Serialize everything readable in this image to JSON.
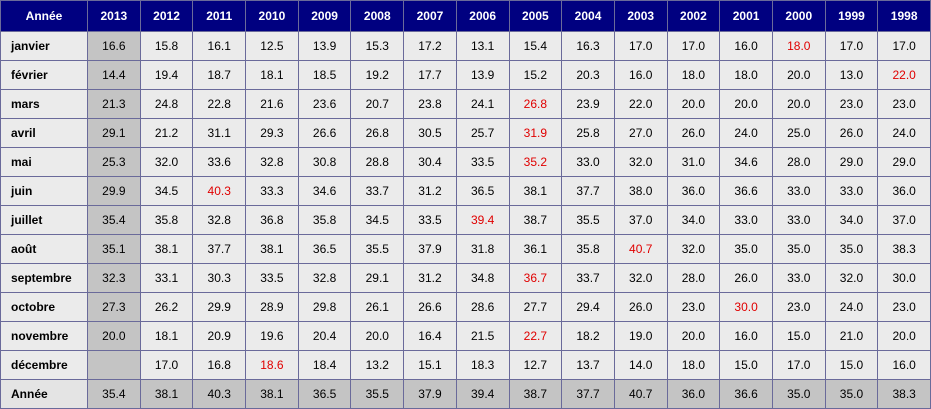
{
  "table": {
    "header": [
      "Année",
      "2013",
      "2012",
      "2011",
      "2010",
      "2009",
      "2008",
      "2007",
      "2006",
      "2005",
      "2004",
      "2003",
      "2002",
      "2001",
      "2000",
      "1999",
      "1998"
    ],
    "highlight_color": "#e00000",
    "rows": [
      {
        "label": "janvier",
        "values": [
          "16.6",
          "15.8",
          "16.1",
          "12.5",
          "13.9",
          "15.3",
          "17.2",
          "13.1",
          "15.4",
          "16.3",
          "17.0",
          "17.0",
          "16.0",
          "18.0",
          "17.0",
          "17.0"
        ],
        "highlight": 13
      },
      {
        "label": "février",
        "values": [
          "14.4",
          "19.4",
          "18.7",
          "18.1",
          "18.5",
          "19.2",
          "17.7",
          "13.9",
          "15.2",
          "20.3",
          "16.0",
          "18.0",
          "18.0",
          "20.0",
          "13.0",
          "22.0"
        ],
        "highlight": 15
      },
      {
        "label": "mars",
        "values": [
          "21.3",
          "24.8",
          "22.8",
          "21.6",
          "23.6",
          "20.7",
          "23.8",
          "24.1",
          "26.8",
          "23.9",
          "22.0",
          "20.0",
          "20.0",
          "20.0",
          "23.0",
          "23.0"
        ],
        "highlight": 8
      },
      {
        "label": "avril",
        "values": [
          "29.1",
          "21.2",
          "31.1",
          "29.3",
          "26.6",
          "26.8",
          "30.5",
          "25.7",
          "31.9",
          "25.8",
          "27.0",
          "26.0",
          "24.0",
          "25.0",
          "26.0",
          "24.0"
        ],
        "highlight": 8
      },
      {
        "label": "mai",
        "values": [
          "25.3",
          "32.0",
          "33.6",
          "32.8",
          "30.8",
          "28.8",
          "30.4",
          "33.5",
          "35.2",
          "33.0",
          "32.0",
          "31.0",
          "34.6",
          "28.0",
          "29.0",
          "29.0"
        ],
        "highlight": 8
      },
      {
        "label": "juin",
        "values": [
          "29.9",
          "34.5",
          "40.3",
          "33.3",
          "34.6",
          "33.7",
          "31.2",
          "36.5",
          "38.1",
          "37.7",
          "38.0",
          "36.0",
          "36.6",
          "33.0",
          "33.0",
          "36.0"
        ],
        "highlight": 2
      },
      {
        "label": "juillet",
        "values": [
          "35.4",
          "35.8",
          "32.8",
          "36.8",
          "35.8",
          "34.5",
          "33.5",
          "39.4",
          "38.7",
          "35.5",
          "37.0",
          "34.0",
          "33.0",
          "33.0",
          "34.0",
          "37.0"
        ],
        "highlight": 7
      },
      {
        "label": "août",
        "values": [
          "35.1",
          "38.1",
          "37.7",
          "38.1",
          "36.5",
          "35.5",
          "37.9",
          "31.8",
          "36.1",
          "35.8",
          "40.7",
          "32.0",
          "35.0",
          "35.0",
          "35.0",
          "38.3"
        ],
        "highlight": 10
      },
      {
        "label": "septembre",
        "values": [
          "32.3",
          "33.1",
          "30.3",
          "33.5",
          "32.8",
          "29.1",
          "31.2",
          "34.8",
          "36.7",
          "33.7",
          "32.0",
          "28.0",
          "26.0",
          "33.0",
          "32.0",
          "30.0"
        ],
        "highlight": 8
      },
      {
        "label": "octobre",
        "values": [
          "27.3",
          "26.2",
          "29.9",
          "28.9",
          "29.8",
          "26.1",
          "26.6",
          "28.6",
          "27.7",
          "29.4",
          "26.0",
          "23.0",
          "30.0",
          "23.0",
          "24.0",
          "23.0"
        ],
        "highlight": 12
      },
      {
        "label": "novembre",
        "values": [
          "20.0",
          "18.1",
          "20.9",
          "19.6",
          "20.4",
          "20.0",
          "16.4",
          "21.5",
          "22.7",
          "18.2",
          "19.0",
          "20.0",
          "16.0",
          "15.0",
          "21.0",
          "20.0"
        ],
        "highlight": 8
      },
      {
        "label": "décembre",
        "values": [
          null,
          "17.0",
          "16.8",
          "18.6",
          "18.4",
          "13.2",
          "15.1",
          "18.3",
          "12.7",
          "13.7",
          "14.0",
          "18.0",
          "15.0",
          "17.0",
          "15.0",
          "16.0"
        ],
        "highlight": 3
      }
    ],
    "footer": {
      "label": "Année",
      "values": [
        "35.4",
        "38.1",
        "40.3",
        "38.1",
        "36.5",
        "35.5",
        "37.9",
        "39.4",
        "38.7",
        "37.7",
        "40.7",
        "36.0",
        "36.6",
        "35.0",
        "35.0",
        "38.3"
      ]
    }
  }
}
